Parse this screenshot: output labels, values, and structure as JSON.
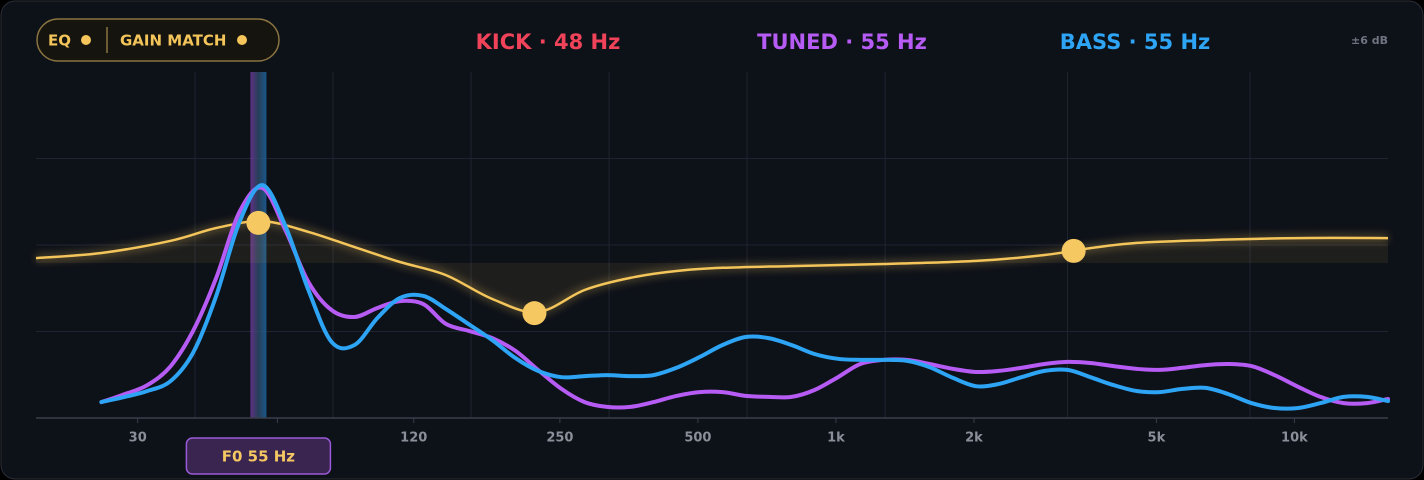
{
  "chart_data": {
    "type": "line",
    "xscale": "log",
    "toggles": [
      "EQ",
      "GAIN MATCH"
    ],
    "readouts": [
      {
        "text": "KICK · 48 Hz",
        "color": "#f0435a"
      },
      {
        "text": "TUNED · 55 Hz",
        "color": "#b65cf5"
      },
      {
        "text": "BASS · 55 Hz",
        "color": "#2ea4f5"
      }
    ],
    "range_label": "±6 dB",
    "xlim": [
      18,
      16000
    ],
    "ylim": [
      0,
      100
    ],
    "xticks": [
      30,
      120,
      250,
      500,
      {
        "value": 1000,
        "label": "1k"
      },
      {
        "value": 2000,
        "label": "2k"
      },
      {
        "value": 5000,
        "label": "5k"
      },
      {
        "value": 10000,
        "label": "10k"
      }
    ],
    "xgrid": [
      40,
      80,
      160,
      320,
      640,
      1280,
      3200,
      8000
    ],
    "ygrid": [
      25,
      50,
      75
    ],
    "marker": {
      "x": 55,
      "label": "F0 55 Hz"
    },
    "x": [
      25,
      28.1,
      31.5,
      35.4,
      39.7,
      44.5,
      50,
      56.1,
      63,
      70.7,
      79.4,
      89.1,
      100,
      112,
      126,
      141,
      159,
      178,
      200,
      224,
      252,
      283,
      317,
      356,
      400,
      449,
      504,
      566,
      635,
      713,
      800,
      898,
      1010,
      1130,
      1270,
      1430,
      1600,
      1800,
      2020,
      2260,
      2540,
      2850,
      3200,
      3590,
      4030,
      4530,
      5080,
      5700,
      6400,
      7180,
      8060,
      9050,
      10200,
      11400,
      12800,
      14400,
      16000
    ],
    "series": [
      {
        "color": "#b65cf5",
        "values": [
          4.6,
          6.9,
          9.5,
          15,
          25.4,
          40.5,
          59.5,
          66.5,
          54.3,
          39.3,
          31.2,
          29.2,
          31.8,
          33.8,
          32.9,
          27.2,
          25.1,
          23.1,
          19.4,
          13.9,
          8.4,
          4.6,
          3.2,
          3.2,
          4.6,
          6.4,
          7.5,
          7.5,
          6.4,
          6.1,
          6.1,
          8.1,
          11.8,
          15.6,
          16.8,
          16.8,
          15.6,
          14.2,
          13.3,
          13.6,
          14.5,
          15.6,
          16.2,
          15.9,
          15,
          14.2,
          13.9,
          14.5,
          15.3,
          15.6,
          15,
          12.4,
          9,
          6.1,
          4.3,
          4.3,
          5.5
        ]
      },
      {
        "color": "#2ea4f5",
        "values": [
          4.6,
          6.1,
          7.8,
          10.7,
          19.1,
          35.3,
          56.6,
          67.3,
          55.5,
          37,
          22,
          21.1,
          28.9,
          34.7,
          35.3,
          31.5,
          26.9,
          22.5,
          17.3,
          13.6,
          11.8,
          12.1,
          12.4,
          12.1,
          12.4,
          14.5,
          17.6,
          21.1,
          23.4,
          23.1,
          21.1,
          18.5,
          17.1,
          16.8,
          16.8,
          16.5,
          14.7,
          11.6,
          9.2,
          9.8,
          11.8,
          13.6,
          13.9,
          11.8,
          9.5,
          7.8,
          7.5,
          8.4,
          8.7,
          6.9,
          4.3,
          2.9,
          2.9,
          4.3,
          6.1,
          6.1,
          4.9
        ]
      }
    ],
    "eq": {
      "color": "#f3c55a",
      "x": [
        18,
        25,
        35.4,
        44.5,
        56.1,
        70.7,
        89.1,
        112,
        141,
        178,
        224,
        283,
        356,
        449,
        566,
        800,
        1270,
        2020,
        2850,
        3590,
        4530,
        6400,
        10200,
        16000
      ],
      "values": [
        46.2,
        47.7,
        51.2,
        54.9,
        56.9,
        53.8,
        49.4,
        45.1,
        41.3,
        34.4,
        30.6,
        37,
        40.5,
        42.5,
        43.4,
        43.9,
        44.5,
        45.4,
        47.1,
        49.1,
        50.6,
        51.4,
        52,
        52
      ]
    },
    "eq_nodes": {
      "color": "#f5c862",
      "x": [
        55,
        220,
        3300
      ],
      "values": [
        56.4,
        30.3,
        48.3
      ]
    }
  }
}
